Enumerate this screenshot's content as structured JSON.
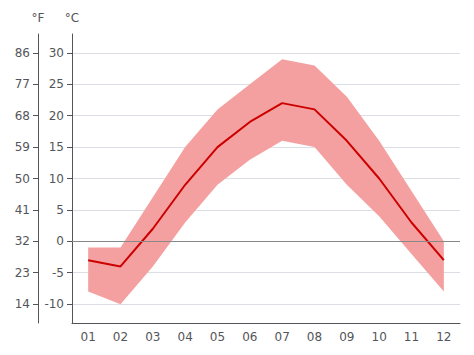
{
  "chart_data": {
    "type": "line",
    "categories": [
      "01",
      "02",
      "03",
      "04",
      "05",
      "06",
      "07",
      "08",
      "09",
      "10",
      "11",
      "12"
    ],
    "series": [
      {
        "type": "band",
        "low": [
          -8,
          -10,
          -4,
          3,
          9,
          13,
          16,
          15,
          9,
          4,
          -2,
          -8
        ],
        "high": [
          -1,
          -1,
          7,
          15,
          21,
          25,
          29,
          28,
          23,
          16,
          8,
          0
        ],
        "color": "#f5a0a0"
      },
      {
        "type": "line",
        "values": [
          -3,
          -4,
          2,
          9,
          15,
          19,
          22,
          21,
          16,
          10,
          3,
          -3
        ],
        "color": "#cc0000"
      }
    ],
    "hlines": [
      {
        "value": 0,
        "color": "#888888"
      }
    ],
    "ylabel": "°C",
    "ylim": [
      -13,
      33
    ],
    "yticks": [
      -10,
      -5,
      0,
      5,
      10,
      15,
      20,
      25,
      30
    ],
    "y2label": "°F",
    "y2lim": [
      8.6,
      91.4
    ],
    "y2ticks": [
      14,
      23,
      32,
      41,
      50,
      59,
      68,
      77,
      86
    ],
    "grid": true
  }
}
